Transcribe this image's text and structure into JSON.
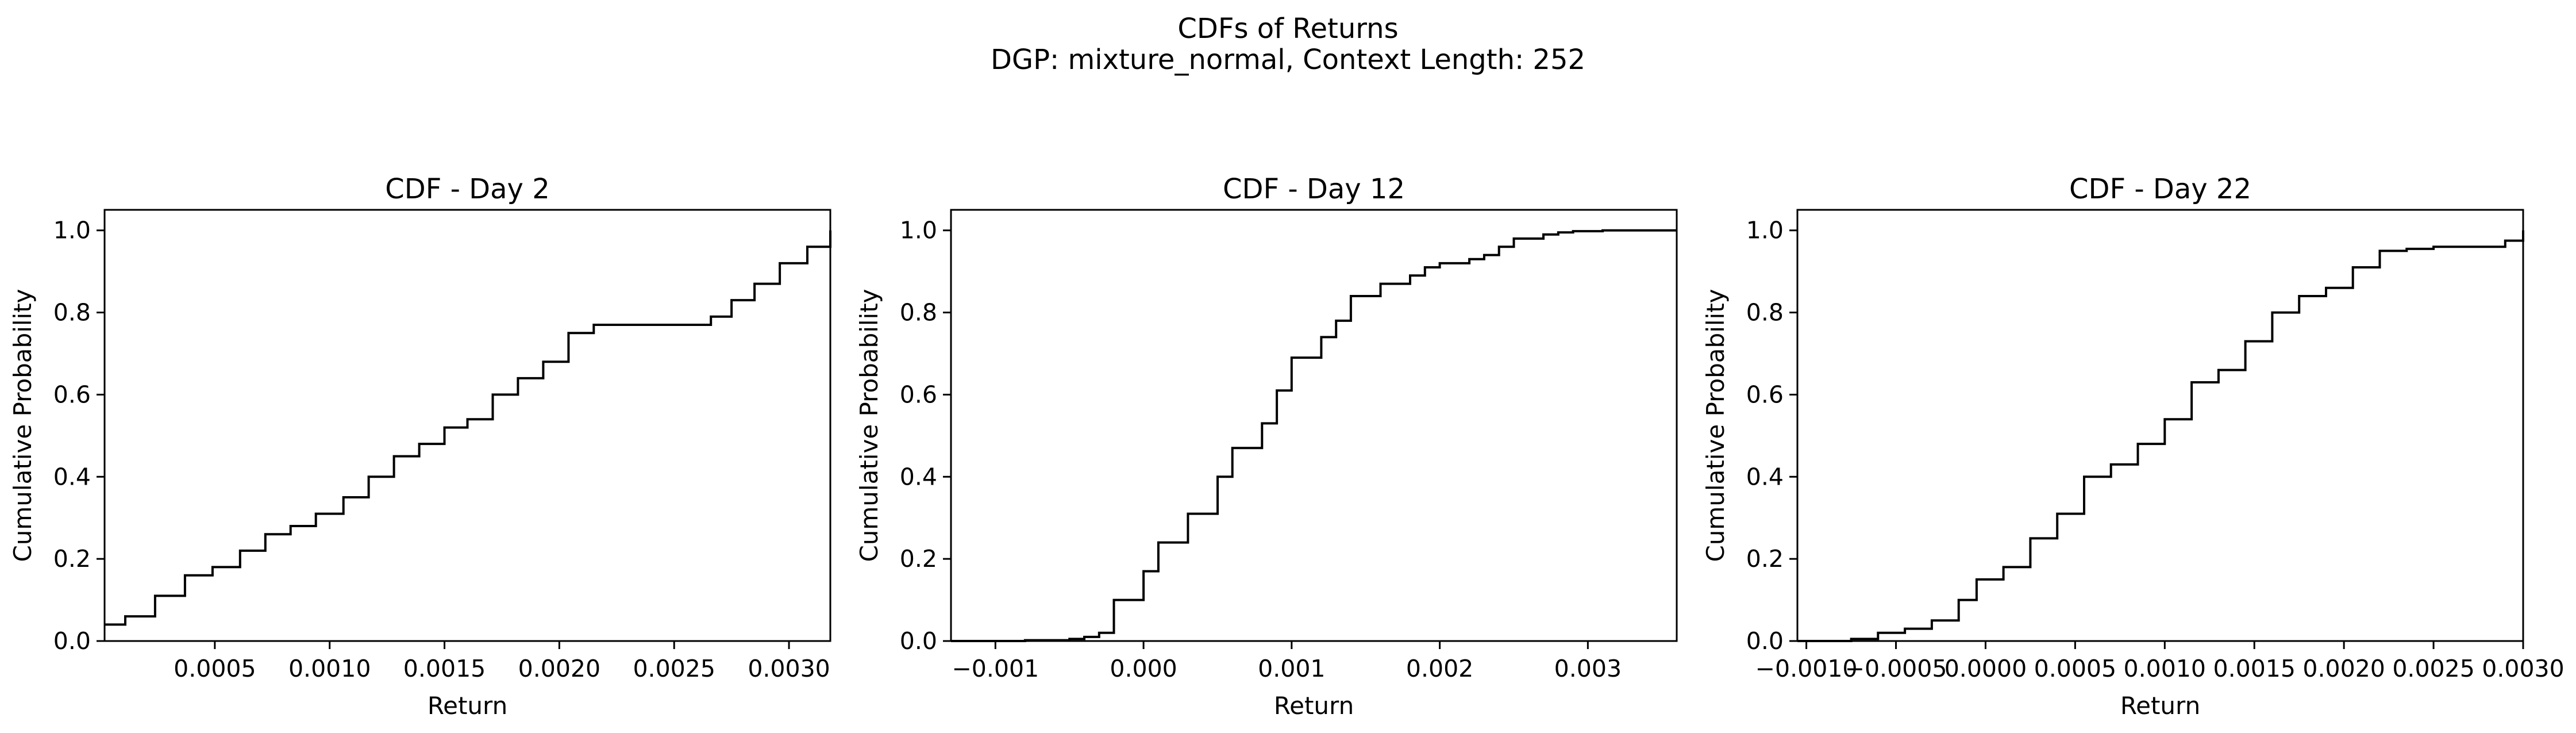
{
  "figure": {
    "title_line1": "CDFs of Returns",
    "title_line2": "DGP: mixture_normal, Context Length: 252"
  },
  "chart_data": [
    {
      "type": "line",
      "step": "post",
      "title": "CDF - Day 2",
      "xlabel": "Return",
      "ylabel": "Cumulative Probability",
      "xlim": [
        2e-05,
        0.00318
      ],
      "ylim": [
        0,
        1.05
      ],
      "xticks": [
        0.0005,
        0.001,
        0.0015,
        0.002,
        0.0025,
        0.003
      ],
      "xtick_labels": [
        "0.0005",
        "0.0010",
        "0.0015",
        "0.0020",
        "0.0025",
        "0.0030"
      ],
      "yticks": [
        0.0,
        0.2,
        0.4,
        0.6,
        0.8,
        1.0
      ],
      "ytick_labels": [
        "0.0",
        "0.2",
        "0.4",
        "0.6",
        "0.8",
        "1.0"
      ],
      "grid": false,
      "color": "#000000",
      "x": [
        2e-05,
        0.00011,
        0.00024,
        0.00037,
        0.00049,
        0.00061,
        0.00072,
        0.00083,
        0.00094,
        0.00106,
        0.00117,
        0.00128,
        0.00139,
        0.0015,
        0.0016,
        0.00171,
        0.00182,
        0.00193,
        0.00204,
        0.00215,
        0.00266,
        0.00275,
        0.00285,
        0.00296,
        0.00308,
        0.00318
      ],
      "y": [
        0.04,
        0.06,
        0.11,
        0.16,
        0.18,
        0.22,
        0.26,
        0.28,
        0.31,
        0.35,
        0.4,
        0.45,
        0.48,
        0.52,
        0.54,
        0.6,
        0.64,
        0.68,
        0.75,
        0.77,
        0.79,
        0.83,
        0.87,
        0.92,
        0.96,
        1.0
      ]
    },
    {
      "type": "line",
      "step": "post",
      "title": "CDF - Day 12",
      "xlabel": "Return",
      "ylabel": "Cumulative Probability",
      "xlim": [
        -0.0013,
        0.0036
      ],
      "ylim": [
        0,
        1.05
      ],
      "xticks": [
        -0.001,
        0.0,
        0.001,
        0.002,
        0.003
      ],
      "xtick_labels": [
        "−0.001",
        "0.000",
        "0.001",
        "0.002",
        "0.003"
      ],
      "yticks": [
        0.0,
        0.2,
        0.4,
        0.6,
        0.8,
        1.0
      ],
      "ytick_labels": [
        "0.0",
        "0.2",
        "0.4",
        "0.6",
        "0.8",
        "1.0"
      ],
      "grid": false,
      "color": "#000000",
      "x": [
        -0.0013,
        -0.0008,
        -0.0005,
        -0.0004,
        -0.0003,
        -0.0002,
        0.0,
        0.0001,
        0.0003,
        0.0005,
        0.0006,
        0.0008,
        0.0009,
        0.001,
        0.0012,
        0.0013,
        0.0014,
        0.0016,
        0.0018,
        0.0019,
        0.002,
        0.0022,
        0.0023,
        0.0024,
        0.0025,
        0.0027,
        0.0028,
        0.0029,
        0.0031,
        0.0036
      ],
      "y": [
        0.0,
        0.002,
        0.005,
        0.01,
        0.02,
        0.1,
        0.17,
        0.24,
        0.31,
        0.4,
        0.47,
        0.53,
        0.61,
        0.69,
        0.74,
        0.78,
        0.84,
        0.87,
        0.89,
        0.91,
        0.92,
        0.93,
        0.94,
        0.96,
        0.98,
        0.99,
        0.995,
        0.998,
        1.0,
        1.0
      ]
    },
    {
      "type": "line",
      "step": "post",
      "title": "CDF - Day 22",
      "xlabel": "Return",
      "ylabel": "Cumulative Probability",
      "xlim": [
        -0.00105,
        0.003
      ],
      "ylim": [
        0,
        1.05
      ],
      "xticks": [
        -0.001,
        -0.0005,
        0.0,
        0.0005,
        0.001,
        0.0015,
        0.002,
        0.0025,
        0.003
      ],
      "xtick_labels": [
        "−0.0010",
        "−0.0005",
        "0.0000",
        "0.0005",
        "0.0010",
        "0.0015",
        "0.0020",
        "0.0025",
        "0.0030"
      ],
      "yticks": [
        0.0,
        0.2,
        0.4,
        0.6,
        0.8,
        1.0
      ],
      "ytick_labels": [
        "0.0",
        "0.2",
        "0.4",
        "0.6",
        "0.8",
        "1.0"
      ],
      "grid": false,
      "color": "#000000",
      "x": [
        -0.00105,
        -0.00075,
        -0.0006,
        -0.00045,
        -0.0003,
        -0.00015,
        -5e-05,
        0.0001,
        0.00025,
        0.0004,
        0.00055,
        0.0007,
        0.00085,
        0.001,
        0.00115,
        0.0013,
        0.00145,
        0.0016,
        0.00175,
        0.0019,
        0.00205,
        0.0022,
        0.00235,
        0.0025,
        0.0029,
        0.003
      ],
      "y": [
        0.0,
        0.005,
        0.02,
        0.03,
        0.05,
        0.1,
        0.15,
        0.18,
        0.25,
        0.31,
        0.4,
        0.43,
        0.48,
        0.54,
        0.63,
        0.66,
        0.73,
        0.8,
        0.84,
        0.86,
        0.91,
        0.95,
        0.955,
        0.96,
        0.975,
        1.0
      ]
    }
  ]
}
